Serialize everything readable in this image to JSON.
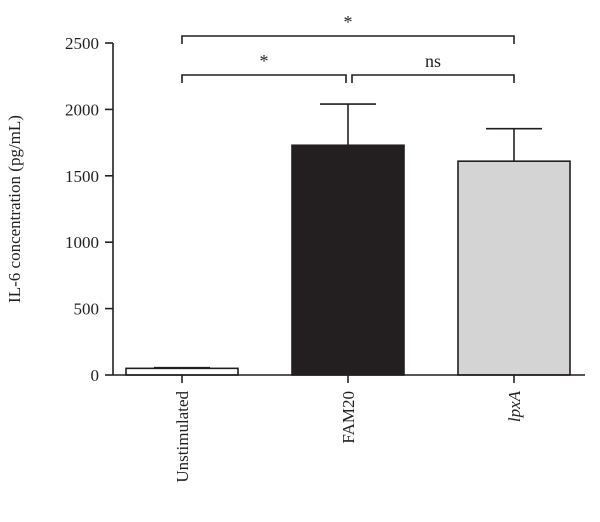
{
  "chart_data": {
    "type": "bar",
    "title": "",
    "xlabel": "",
    "ylabel": "IL-6 concentration (pg/mL)",
    "ylim": [
      0,
      2500
    ],
    "yticks": [
      0,
      500,
      1000,
      1500,
      2000,
      2500
    ],
    "grid": false,
    "categories": [
      {
        "label": "Unstimulated",
        "italic": false
      },
      {
        "label": "FAM20",
        "italic": false
      },
      {
        "label": "lpxA",
        "italic": true
      }
    ],
    "values": [
      50,
      1730,
      1610
    ],
    "errors": [
      5,
      310,
      245
    ],
    "colors": [
      "#ffffff",
      "#231f20",
      "#d4d4d4"
    ],
    "significance": [
      {
        "from": 0,
        "to": 1,
        "label": "*"
      },
      {
        "from": 1,
        "to": 2,
        "label": "ns"
      },
      {
        "from": 0,
        "to": 2,
        "label": "*"
      }
    ]
  }
}
